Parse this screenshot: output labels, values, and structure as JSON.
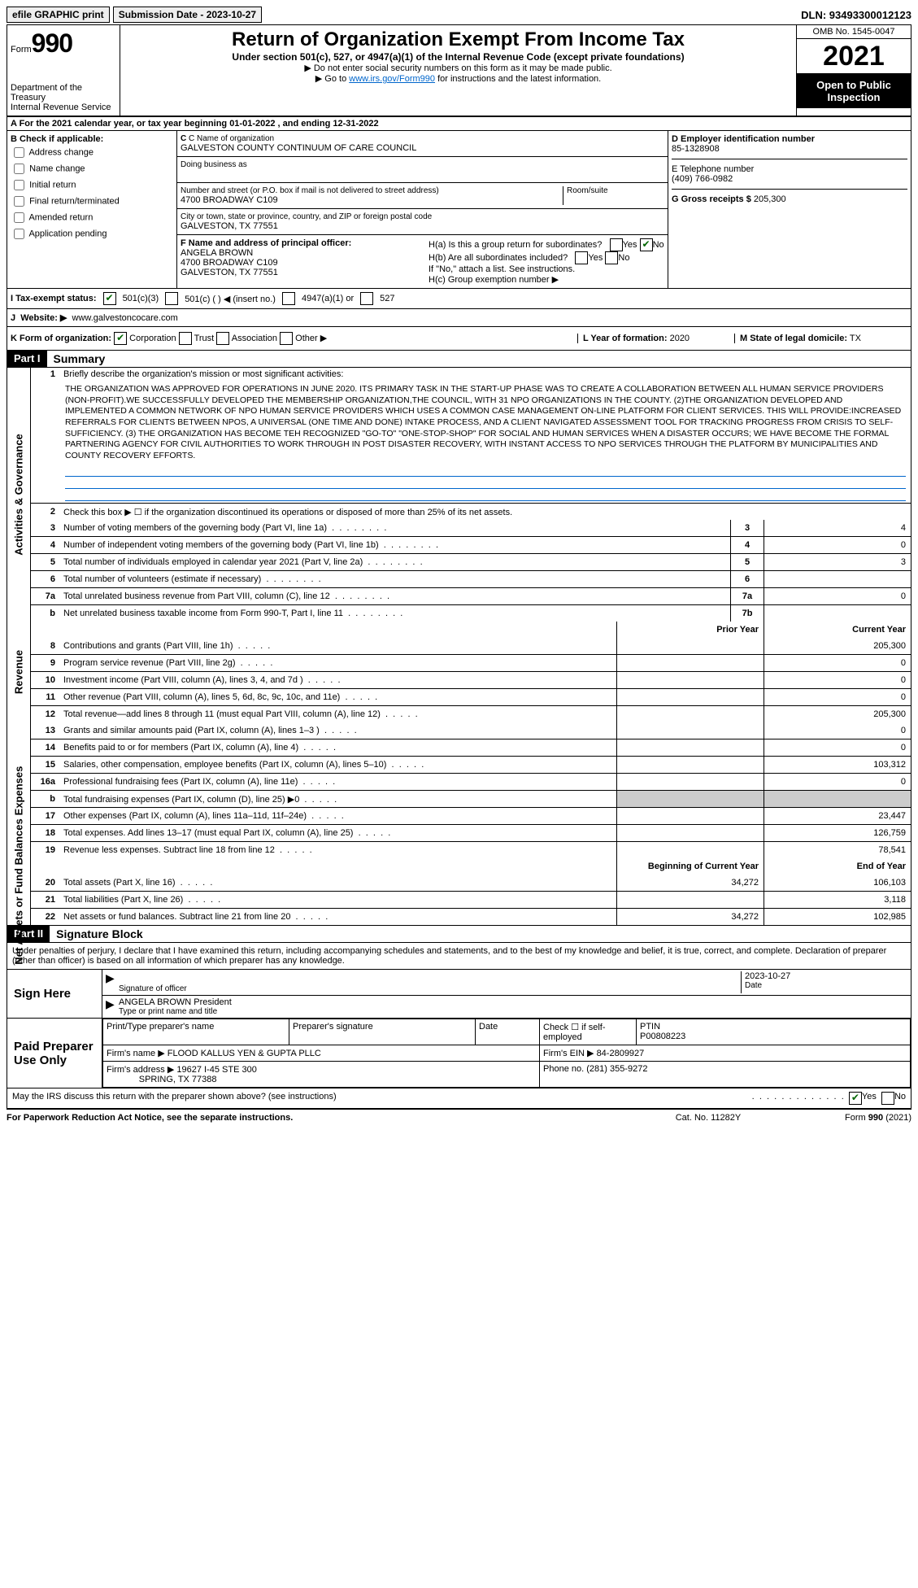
{
  "top": {
    "efile": "efile GRAPHIC print",
    "submission_label": "Submission Date - 2023-10-27",
    "dln": "DLN: 93493300012123"
  },
  "header": {
    "form_label": "Form",
    "form_no": "990",
    "title": "Return of Organization Exempt From Income Tax",
    "subtitle": "Under section 501(c), 527, or 4947(a)(1) of the Internal Revenue Code (except private foundations)",
    "note1": "▶ Do not enter social security numbers on this form as it may be made public.",
    "note2_pre": "▶ Go to ",
    "note2_link": "www.irs.gov/Form990",
    "note2_post": " for instructions and the latest information.",
    "dept": "Department of the Treasury",
    "irs": "Internal Revenue Service",
    "omb": "OMB No. 1545-0047",
    "year": "2021",
    "open": "Open to Public Inspection"
  },
  "rowA": "A  For the 2021 calendar year, or tax year beginning 01-01-2022   , and ending 12-31-2022",
  "B": {
    "label": "B Check if applicable:",
    "opts": [
      "Address change",
      "Name change",
      "Initial return",
      "Final return/terminated",
      "Amended return",
      "Application pending"
    ]
  },
  "C": {
    "name_label": "C Name of organization",
    "name": "GALVESTON COUNTY CONTINUUM OF CARE COUNCIL",
    "dba_label": "Doing business as",
    "addr_label": "Number and street (or P.O. box if mail is not delivered to street address)",
    "addr": "4700 BROADWAY C109",
    "room_label": "Room/suite",
    "city_label": "City or town, state or province, country, and ZIP or foreign postal code",
    "city": "GALVESTON, TX  77551"
  },
  "D": {
    "label": "D Employer identification number",
    "val": "85-1328908"
  },
  "E": {
    "label": "E Telephone number",
    "val": "(409) 766-0982"
  },
  "G": {
    "label": "G Gross receipts $",
    "val": "205,300"
  },
  "F": {
    "label": "F  Name and address of principal officer:",
    "name": "ANGELA BROWN",
    "addr1": "4700 BROADWAY C109",
    "addr2": "GALVESTON, TX  77551"
  },
  "H": {
    "a": "H(a)  Is this a group return for subordinates?",
    "b": "H(b)  Are all subordinates included?",
    "b_note": "If \"No,\" attach a list. See instructions.",
    "c": "H(c)  Group exemption number ▶"
  },
  "I": {
    "label": "I  Tax-exempt status:",
    "o1": "501(c)(3)",
    "o2": "501(c) (  ) ◀ (insert no.)",
    "o3": "4947(a)(1) or",
    "o4": "527"
  },
  "J": {
    "label": "Website: ▶",
    "val": "www.galvestoncocare.com"
  },
  "K": {
    "label": "K Form of organization:",
    "opts": [
      "Corporation",
      "Trust",
      "Association",
      "Other ▶"
    ]
  },
  "L": {
    "label": "L Year of formation:",
    "val": "2020"
  },
  "M": {
    "label": "M State of legal domicile:",
    "val": "TX"
  },
  "part1": {
    "tag": "Part I",
    "title": "Summary",
    "line1_label": "Briefly describe the organization's mission or most significant activities:",
    "mission": "THE ORGANIZATION WAS APPROVED FOR OPERATIONS IN JUNE 2020. ITS PRIMARY TASK IN THE START-UP PHASE WAS TO CREATE A COLLABORATION BETWEEN ALL HUMAN SERVICE PROVIDERS (NON-PROFIT).WE SUCCESSFULLY DEVELOPED THE MEMBERSHIP ORGANIZATION,THE COUNCIL, WITH 31 NPO ORGANIZATIONS IN THE COUNTY. (2)THE ORGANIZATION DEVELOPED AND IMPLEMENTED A COMMON NETWORK OF NPO HUMAN SERVICE PROVIDERS WHICH USES A COMMON CASE MANAGEMENT ON-LINE PLATFORM FOR CLIENT SERVICES. THIS WILL PROVIDE:INCREASED REFERRALS FOR CLIENTS BETWEEN NPOS, A UNIVERSAL (ONE TIME AND DONE) INTAKE PROCESS, AND A CLIENT NAVIGATED ASSESSMENT TOOL FOR TRACKING PROGRESS FROM CRISIS TO SELF-SUFFICIENCY. (3) THE ORGANIZATION HAS BECOME TEH RECOGNIZED \"GO-TO\" \"ONE-STOP-SHOP\" FOR SOCIAL AND HUMAN SERVICES WHEN A DISASTER OCCURS; WE HAVE BECOME THE FORMAL PARTNERING AGENCY FOR CIVIL AUTHORITIES TO WORK THROUGH IN POST DISASTER RECOVERY, WITH INSTANT ACCESS TO NPO SERVICES THROUGH THE PLATFORM BY MUNICIPALITIES AND COUNTY RECOVERY EFFORTS.",
    "line2": "Check this box ▶ ☐ if the organization discontinued its operations or disposed of more than 25% of its net assets.",
    "lines_gov": [
      {
        "n": "3",
        "t": "Number of voting members of the governing body (Part VI, line 1a)",
        "box": "3",
        "v": "4"
      },
      {
        "n": "4",
        "t": "Number of independent voting members of the governing body (Part VI, line 1b)",
        "box": "4",
        "v": "0"
      },
      {
        "n": "5",
        "t": "Total number of individuals employed in calendar year 2021 (Part V, line 2a)",
        "box": "5",
        "v": "3"
      },
      {
        "n": "6",
        "t": "Total number of volunteers (estimate if necessary)",
        "box": "6",
        "v": ""
      },
      {
        "n": "7a",
        "t": "Total unrelated business revenue from Part VIII, column (C), line 12",
        "box": "7a",
        "v": "0"
      },
      {
        "n": "b",
        "t": "Net unrelated business taxable income from Form 990-T, Part I, line 11",
        "box": "7b",
        "v": ""
      }
    ],
    "col_prior": "Prior Year",
    "col_curr": "Current Year",
    "lines_rev": [
      {
        "n": "8",
        "t": "Contributions and grants (Part VIII, line 1h)",
        "p": "",
        "c": "205,300"
      },
      {
        "n": "9",
        "t": "Program service revenue (Part VIII, line 2g)",
        "p": "",
        "c": "0"
      },
      {
        "n": "10",
        "t": "Investment income (Part VIII, column (A), lines 3, 4, and 7d )",
        "p": "",
        "c": "0"
      },
      {
        "n": "11",
        "t": "Other revenue (Part VIII, column (A), lines 5, 6d, 8c, 9c, 10c, and 11e)",
        "p": "",
        "c": "0"
      },
      {
        "n": "12",
        "t": "Total revenue—add lines 8 through 11 (must equal Part VIII, column (A), line 12)",
        "p": "",
        "c": "205,300"
      }
    ],
    "lines_exp": [
      {
        "n": "13",
        "t": "Grants and similar amounts paid (Part IX, column (A), lines 1–3 )",
        "p": "",
        "c": "0"
      },
      {
        "n": "14",
        "t": "Benefits paid to or for members (Part IX, column (A), line 4)",
        "p": "",
        "c": "0"
      },
      {
        "n": "15",
        "t": "Salaries, other compensation, employee benefits (Part IX, column (A), lines 5–10)",
        "p": "",
        "c": "103,312"
      },
      {
        "n": "16a",
        "t": "Professional fundraising fees (Part IX, column (A), line 11e)",
        "p": "",
        "c": "0"
      },
      {
        "n": "b",
        "t": "Total fundraising expenses (Part IX, column (D), line 25) ▶0",
        "p": "grey",
        "c": "grey"
      },
      {
        "n": "17",
        "t": "Other expenses (Part IX, column (A), lines 11a–11d, 11f–24e)",
        "p": "",
        "c": "23,447"
      },
      {
        "n": "18",
        "t": "Total expenses. Add lines 13–17 (must equal Part IX, column (A), line 25)",
        "p": "",
        "c": "126,759"
      },
      {
        "n": "19",
        "t": "Revenue less expenses. Subtract line 18 from line 12",
        "p": "",
        "c": "78,541"
      }
    ],
    "col_beg": "Beginning of Current Year",
    "col_end": "End of Year",
    "lines_na": [
      {
        "n": "20",
        "t": "Total assets (Part X, line 16)",
        "p": "34,272",
        "c": "106,103"
      },
      {
        "n": "21",
        "t": "Total liabilities (Part X, line 26)",
        "p": "",
        "c": "3,118"
      },
      {
        "n": "22",
        "t": "Net assets or fund balances. Subtract line 21 from line 20",
        "p": "34,272",
        "c": "102,985"
      }
    ],
    "vtab_gov": "Activities & Governance",
    "vtab_rev": "Revenue",
    "vtab_exp": "Expenses",
    "vtab_na": "Net Assets or Fund Balances"
  },
  "part2": {
    "tag": "Part II",
    "title": "Signature Block",
    "perjury": "Under penalties of perjury, I declare that I have examined this return, including accompanying schedules and statements, and to the best of my knowledge and belief, it is true, correct, and complete. Declaration of preparer (other than officer) is based on all information of which preparer has any knowledge.",
    "sign_here": "Sign Here",
    "sig_officer": "Signature of officer",
    "sig_date": "2023-10-27",
    "date_label": "Date",
    "officer_name": "ANGELA BROWN President",
    "officer_type": "Type or print name and title",
    "paid": "Paid Preparer Use Only",
    "prep_name_label": "Print/Type preparer's name",
    "prep_sig_label": "Preparer's signature",
    "prep_date_label": "Date",
    "prep_check": "Check ☐ if self-employed",
    "ptin_label": "PTIN",
    "ptin": "P00808223",
    "firm_name_label": "Firm's name    ▶",
    "firm_name": "FLOOD KALLUS YEN & GUPTA PLLC",
    "firm_ein_label": "Firm's EIN ▶",
    "firm_ein": "84-2809927",
    "firm_addr_label": "Firm's address ▶",
    "firm_addr1": "19627 I-45 STE 300",
    "firm_addr2": "SPRING, TX  77388",
    "phone_label": "Phone no.",
    "phone": "(281) 355-9272",
    "discuss": "May the IRS discuss this return with the preparer shown above? (see instructions)",
    "footer_left": "For Paperwork Reduction Act Notice, see the separate instructions.",
    "footer_mid": "Cat. No. 11282Y",
    "footer_right": "Form 990 (2021)"
  }
}
